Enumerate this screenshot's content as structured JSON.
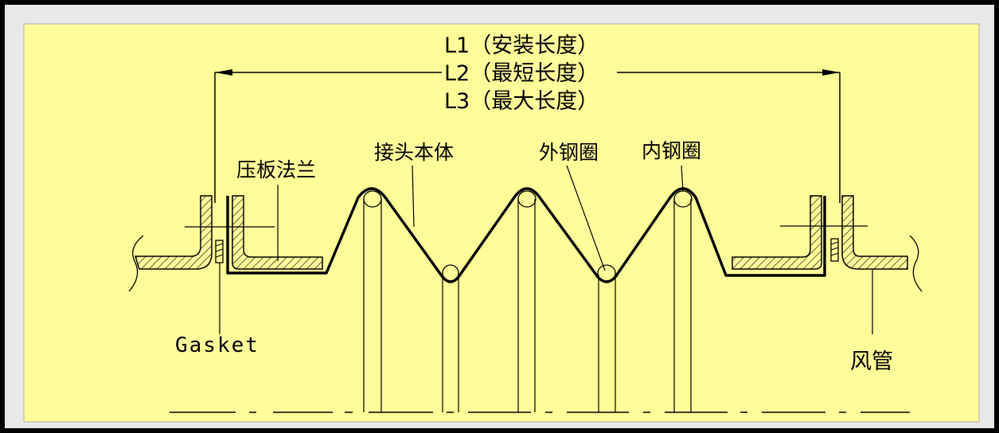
{
  "dimension_labels": {
    "l1": "L1（安装长度）",
    "l2": "L2（最短长度）",
    "l3": "L3（最大长度）"
  },
  "part_labels": {
    "flange": "压板法兰",
    "body": "接头本体",
    "outer_ring": "外钢圈",
    "inner_ring": "内钢圈",
    "gasket": "Gasket",
    "duct": "风管"
  },
  "colors": {
    "background": "#fffc9a",
    "frame": "#c8c8c8",
    "outer_border": "#000000",
    "line": "#000000"
  }
}
